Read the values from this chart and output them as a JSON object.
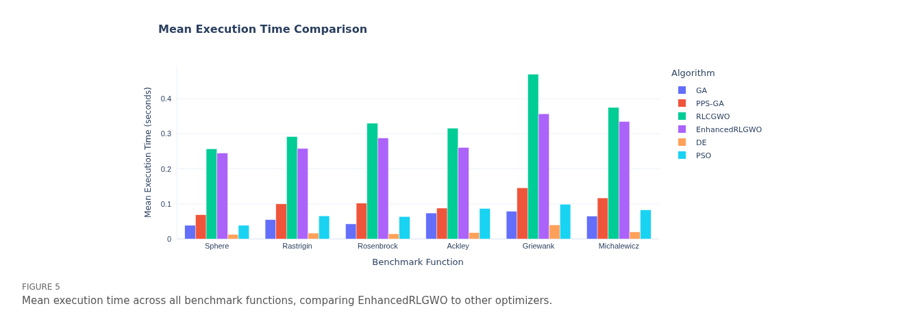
{
  "chart_data": {
    "type": "bar",
    "title": "Mean Execution Time Comparison",
    "xlabel": "Benchmark Function",
    "ylabel": "Mean Execution Time (seconds)",
    "legend_title": "Algorithm",
    "categories": [
      "Sphere",
      "Rastrigin",
      "Rosenbrock",
      "Ackley",
      "Griewank",
      "Michalewicz"
    ],
    "series": [
      {
        "name": "GA",
        "color": "#636efa",
        "values": [
          0.039,
          0.055,
          0.043,
          0.074,
          0.079,
          0.065
        ]
      },
      {
        "name": "PPS-GA",
        "color": "#ef553b",
        "values": [
          0.069,
          0.1,
          0.102,
          0.088,
          0.146,
          0.117
        ]
      },
      {
        "name": "RLCGWO",
        "color": "#00cc96",
        "values": [
          0.257,
          0.292,
          0.33,
          0.316,
          0.47,
          0.375
        ]
      },
      {
        "name": "EnhancedRLGWO",
        "color": "#ab63fa",
        "values": [
          0.245,
          0.258,
          0.288,
          0.261,
          0.357,
          0.335
        ]
      },
      {
        "name": "DE",
        "color": "#ffa15a",
        "values": [
          0.013,
          0.017,
          0.015,
          0.018,
          0.04,
          0.02
        ]
      },
      {
        "name": "PSO",
        "color": "#19d3f3",
        "values": [
          0.039,
          0.066,
          0.064,
          0.087,
          0.099,
          0.083
        ]
      }
    ],
    "ylim": [
      0,
      0.494
    ],
    "yticks": [
      0,
      0.1,
      0.2,
      0.3,
      0.4
    ],
    "grid": "y",
    "legend": "top right",
    "annotations": [
      "FIGURE 5",
      "Mean execution time across all benchmark functions, comparing EnhancedRLGWO to other optimizers."
    ]
  }
}
